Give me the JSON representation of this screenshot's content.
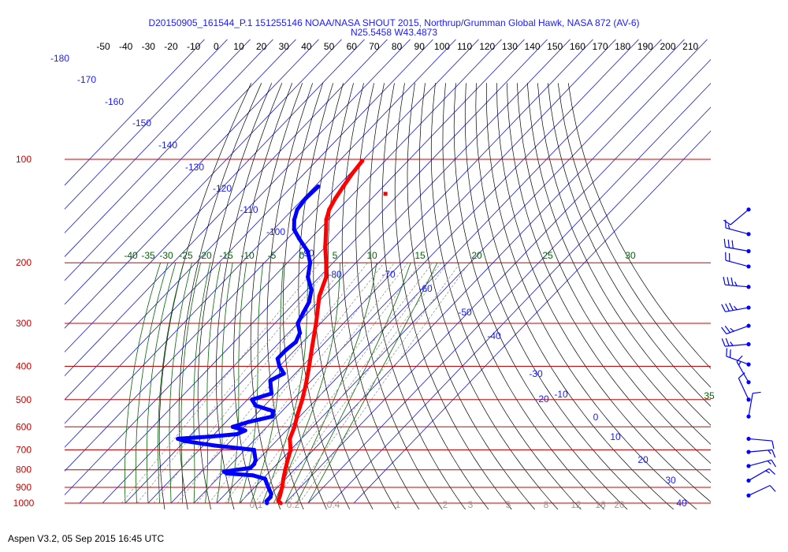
{
  "title_line1": "D20150905_161544_P.1 151255146 NOAA/NASA SHOUT 2015, Northrup/Grumman Global Hawk, NASA 872 (AV-6)",
  "title_line2": "N25.5458 W43.4873",
  "footer": "Aspen V3.2, 05 Sep 2015  16:45 UTC",
  "colors": {
    "temperature": "#ff0000",
    "dewpoint": "#0000ff",
    "isobar": "#cc0000",
    "isotherm": "#1a1acc",
    "dry_adiabat": "#000000",
    "moist_adiabat": "#006600",
    "mixing_ratio": "#999999",
    "wind_barb": "#0000ff",
    "text_blue": "#1a1aff"
  },
  "chart_data": {
    "type": "skew-t",
    "y_axis": {
      "scale": "log",
      "unit": "hPa",
      "ylim": [
        1000,
        100
      ],
      "ticks": [
        "100",
        "200",
        "300",
        "400",
        "500",
        "600",
        "700",
        "800",
        "900",
        "1000"
      ]
    },
    "top_axis_ticks": [
      "-50",
      "-40",
      "-30",
      "-20",
      "-10",
      "0",
      "10",
      "20",
      "30",
      "40",
      "50",
      "60",
      "70",
      "80",
      "90",
      "100",
      "110",
      "120",
      "130",
      "140",
      "150",
      "160",
      "170",
      "180",
      "190",
      "200",
      "210"
    ],
    "isotherm_labels": [
      "-180",
      "-170",
      "-160",
      "-150",
      "-140",
      "-130",
      "-120",
      "-110",
      "-100",
      "-90",
      "-80",
      "-70",
      "-60",
      "-50",
      "-40",
      "-30",
      "-20",
      "-10",
      "0",
      "10",
      "20",
      "30",
      "40"
    ],
    "moist_adiabat_labels": [
      "-40",
      "-35",
      "-30",
      "-25",
      "-20",
      "-15",
      "-10",
      "-5",
      "0",
      "5",
      "10",
      "15",
      "20",
      "25",
      "30",
      "35"
    ],
    "mixing_ratio_labels": [
      "0.1",
      "0.2",
      "0.4",
      "1",
      "2",
      "3",
      "5",
      "8",
      "12",
      "16",
      "20"
    ],
    "series": [
      {
        "name": "Temperature",
        "points": [
          [
            1000,
            28
          ],
          [
            985,
            26
          ],
          [
            950,
            24.5
          ],
          [
            900,
            22
          ],
          [
            850,
            19
          ],
          [
            800,
            16
          ],
          [
            750,
            13
          ],
          [
            700,
            10
          ],
          [
            650,
            5
          ],
          [
            600,
            2
          ],
          [
            550,
            -2
          ],
          [
            500,
            -6
          ],
          [
            450,
            -11
          ],
          [
            400,
            -17
          ],
          [
            350,
            -24
          ],
          [
            300,
            -32
          ],
          [
            250,
            -42
          ],
          [
            220,
            -47
          ],
          [
            200,
            -53
          ],
          [
            180,
            -60
          ],
          [
            160,
            -67
          ],
          [
            150,
            -71
          ],
          [
            140,
            -74
          ],
          [
            130,
            -76
          ],
          [
            120,
            -77.5
          ],
          [
            110,
            -79
          ],
          [
            101,
            -80
          ]
        ]
      },
      {
        "name": "Dewpoint",
        "points": [
          [
            1000,
            22
          ],
          [
            985,
            21
          ],
          [
            960,
            21
          ],
          [
            940,
            20
          ],
          [
            920,
            18
          ],
          [
            900,
            16
          ],
          [
            880,
            14
          ],
          [
            860,
            12
          ],
          [
            850,
            11
          ],
          [
            830,
            4
          ],
          [
            820,
            -8
          ],
          [
            810,
            -10
          ],
          [
            790,
            0
          ],
          [
            770,
            0
          ],
          [
            750,
            -1
          ],
          [
            720,
            -4
          ],
          [
            700,
            -6
          ],
          [
            680,
            -25
          ],
          [
            660,
            -40
          ],
          [
            650,
            -44
          ],
          [
            640,
            -30
          ],
          [
            630,
            -20
          ],
          [
            615,
            -18
          ],
          [
            600,
            -25
          ],
          [
            580,
            -20
          ],
          [
            560,
            -12
          ],
          [
            540,
            -14
          ],
          [
            520,
            -24
          ],
          [
            500,
            -28
          ],
          [
            480,
            -22
          ],
          [
            460,
            -25
          ],
          [
            440,
            -28
          ],
          [
            420,
            -25
          ],
          [
            400,
            -30
          ],
          [
            380,
            -34
          ],
          [
            360,
            -34
          ],
          [
            340,
            -33
          ],
          [
            320,
            -35
          ],
          [
            300,
            -40
          ],
          [
            280,
            -42
          ],
          [
            260,
            -44
          ],
          [
            240,
            -48
          ],
          [
            220,
            -55
          ],
          [
            200,
            -60
          ],
          [
            185,
            -66
          ],
          [
            170,
            -75
          ],
          [
            160,
            -81
          ],
          [
            150,
            -85
          ],
          [
            140,
            -88
          ],
          [
            130,
            -89
          ],
          [
            120,
            -88.5
          ]
        ]
      }
    ],
    "wind_barbs": [
      {
        "p": 140,
        "dir": 230,
        "spd": 10
      },
      {
        "p": 165,
        "dir": 285,
        "spd": 15
      },
      {
        "p": 185,
        "dir": 280,
        "spd": 30
      },
      {
        "p": 205,
        "dir": 285,
        "spd": 20
      },
      {
        "p": 235,
        "dir": 275,
        "spd": 35
      },
      {
        "p": 270,
        "dir": 260,
        "spd": 35
      },
      {
        "p": 305,
        "dir": 250,
        "spd": 25
      },
      {
        "p": 345,
        "dir": 265,
        "spd": 25
      },
      {
        "p": 395,
        "dir": 290,
        "spd": 20
      },
      {
        "p": 445,
        "dir": 330,
        "spd": 15
      },
      {
        "p": 500,
        "dir": 335,
        "spd": 10
      },
      {
        "p": 560,
        "dir": 10,
        "spd": 10
      },
      {
        "p": 650,
        "dir": 95,
        "spd": 10
      },
      {
        "p": 710,
        "dir": 85,
        "spd": 15
      },
      {
        "p": 780,
        "dir": 75,
        "spd": 15
      },
      {
        "p": 860,
        "dir": 60,
        "spd": 15
      },
      {
        "p": 950,
        "dir": 65,
        "spd": 10
      }
    ],
    "extra_marks": [
      {
        "p": 126,
        "t": -56
      }
    ]
  }
}
